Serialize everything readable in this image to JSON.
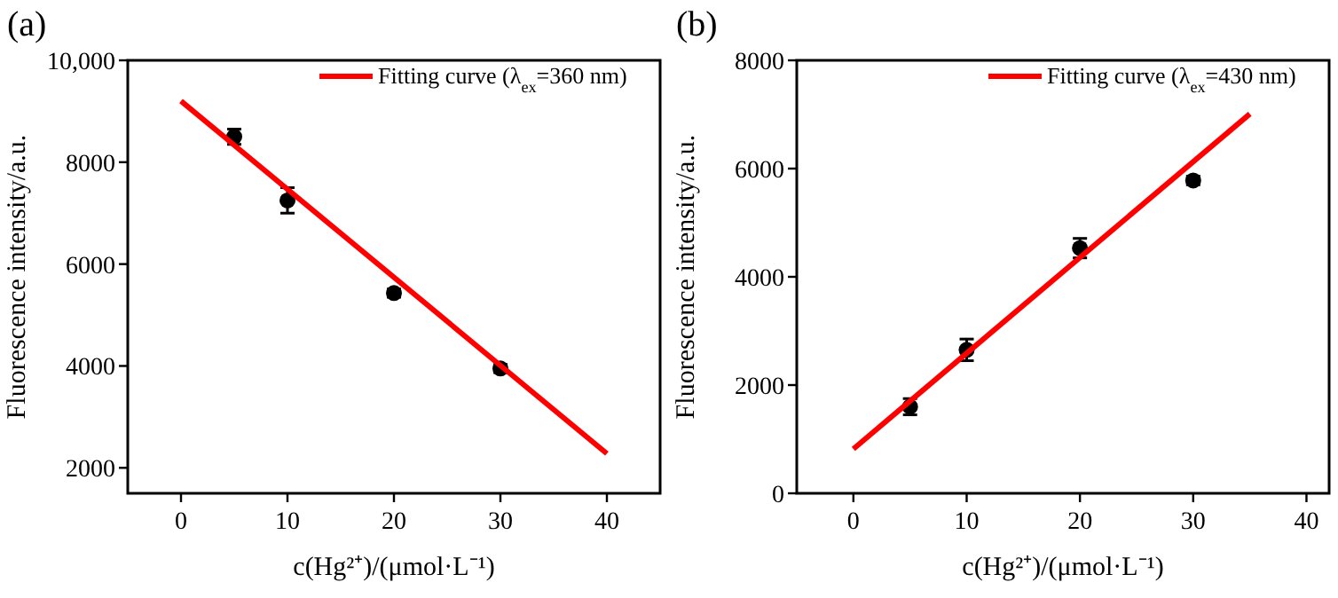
{
  "chart_data": [
    {
      "type": "scatter",
      "title": "(a)",
      "xlabel": "c(Hg²⁺)/(μmol·L⁻¹)",
      "ylabel": "Fluorescence intensity/a.u.",
      "xlim": [
        -5,
        45
      ],
      "xticks": [
        0,
        10,
        20,
        30,
        40
      ],
      "ylim": [
        1500,
        10000
      ],
      "yticks": [
        2000,
        4000,
        6000,
        8000,
        {
          "value": 10000,
          "label": "10,000"
        }
      ],
      "legend": "top right",
      "series": [
        {
          "type": "scatter",
          "color": "#000000",
          "x": [
            5,
            10,
            20,
            30
          ],
          "values": [
            8500,
            7250,
            5430,
            3950
          ],
          "errors": [
            150,
            250,
            80,
            80
          ],
          "marker": "circle"
        },
        {
          "type": "line",
          "name": "Fitting curve (λ$_{ex}$=360 nm)",
          "color": "#ff0000",
          "x": [
            0,
            40
          ],
          "values": [
            9200,
            2280
          ],
          "marker": "none"
        }
      ]
    },
    {
      "type": "scatter",
      "title": "(b)",
      "xlabel": "c(Hg²⁺)/(μmol·L⁻¹)",
      "ylabel": "Fluorescence intensity/a.u.",
      "xlim": [
        -5,
        42
      ],
      "xticks": [
        0,
        10,
        20,
        30,
        40
      ],
      "ylim": [
        0,
        8000
      ],
      "yticks": [
        0,
        2000,
        4000,
        6000,
        8000
      ],
      "legend": "top right",
      "series": [
        {
          "type": "scatter",
          "color": "#000000",
          "x": [
            5,
            10,
            20,
            30
          ],
          "values": [
            1600,
            2650,
            4530,
            5780
          ],
          "errors": [
            150,
            200,
            180,
            80
          ],
          "marker": "circle"
        },
        {
          "type": "line",
          "name": "Fitting curve (λ$_{ex}$=430 nm)",
          "color": "#ff0000",
          "x": [
            0,
            35
          ],
          "values": [
            820,
            7010
          ],
          "marker": "none"
        }
      ]
    }
  ]
}
